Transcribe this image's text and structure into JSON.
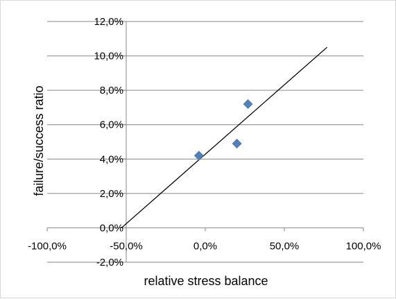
{
  "chart_data": {
    "type": "scatter",
    "title": "",
    "xlabel": "relative stress balance",
    "ylabel": "failure/success ratio",
    "xlim": [
      -1.0,
      1.0
    ],
    "ylim": [
      -0.02,
      0.12
    ],
    "x_ticks": [
      {
        "value": -1.0,
        "label": "-100,0%"
      },
      {
        "value": -0.5,
        "label": "-50,0%"
      },
      {
        "value": 0.0,
        "label": "0,0%"
      },
      {
        "value": 0.5,
        "label": "50,0%"
      },
      {
        "value": 1.0,
        "label": "100,0%"
      }
    ],
    "y_ticks": [
      {
        "value": -0.02,
        "label": "-2,0%"
      },
      {
        "value": 0.0,
        "label": "0,0%"
      },
      {
        "value": 0.02,
        "label": "2,0%"
      },
      {
        "value": 0.04,
        "label": "4,0%"
      },
      {
        "value": 0.06,
        "label": "6,0%"
      },
      {
        "value": 0.08,
        "label": "8,0%"
      },
      {
        "value": 0.1,
        "label": "10,0%"
      },
      {
        "value": 0.12,
        "label": "12,0%"
      }
    ],
    "grid": "horizontal",
    "legend": "none",
    "series": [
      {
        "marker": "diamond",
        "color": "#4f81bd",
        "points": [
          {
            "x": -0.04,
            "y": 0.042
          },
          {
            "x": 0.2,
            "y": 0.049
          },
          {
            "x": 0.27,
            "y": 0.072
          }
        ]
      }
    ],
    "trendline": {
      "type": "linear",
      "color": "#000000",
      "from": {
        "x": -0.53,
        "y": 0.0
      },
      "to": {
        "x": 0.77,
        "y": 0.105
      }
    }
  }
}
